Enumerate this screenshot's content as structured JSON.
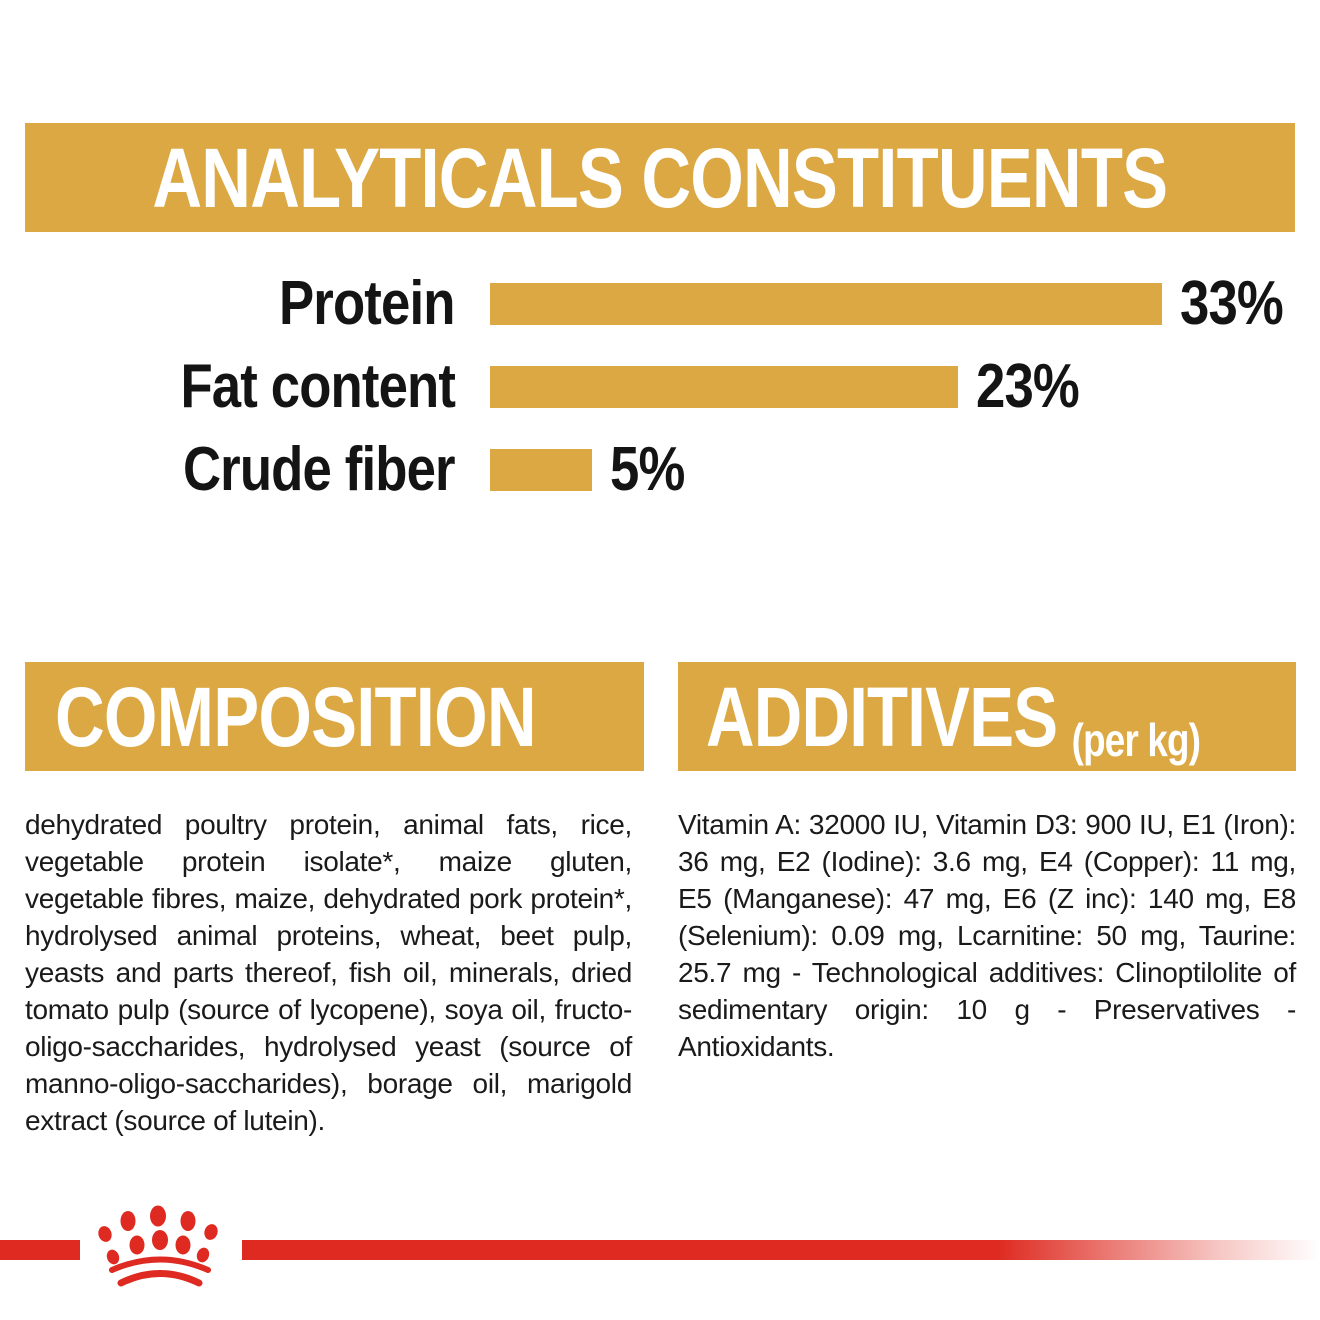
{
  "colors": {
    "gold": "#DBA843",
    "red": "#DE2A20",
    "text": "#1a1a1a",
    "heading_text": "#ffffff"
  },
  "analyticals": {
    "title": "ANALYTICALS CONSTITUENTS"
  },
  "chart_data": {
    "type": "bar",
    "orientation": "horizontal",
    "categories": [
      "Protein",
      "Fat content",
      "Crude fiber"
    ],
    "values": [
      33,
      23,
      5
    ],
    "value_labels": [
      "33%",
      "23%",
      "5%"
    ],
    "xlim": [
      0,
      33
    ],
    "bar_color": "#DBA843",
    "grid": "off",
    "legend": "none",
    "title": "ANALYTICALS CONSTITUENTS"
  },
  "composition": {
    "title": "COMPOSITION",
    "body": "dehydrated poultry protein, animal fats, rice, vegetable protein isolate*, maize gluten, vegetable fibres, maize, dehydrated pork protein*, hydrolysed animal proteins, wheat, beet pulp, yeasts and parts thereof, fish oil, minerals, dried tomato pulp (source of lycopene), soya oil, fructo-oligo-saccharides, hydrolysed yeast (source of manno-oligo-saccharides), borage oil, marigold extract (source of lutein)."
  },
  "additives": {
    "title": "ADDITIVES",
    "title_suffix": "(per kg)",
    "body": "Vitamin A: 32000 IU, Vitamin D3: 900 IU, E1 (Iron): 36 mg, E2 (Iodine): 3.6 mg, E4 (Copper): 11 mg, E5 (Manganese): 47 mg, E6 (Z inc): 140 mg, E8 (Selenium): 0.09 mg, Lcarnitine: 50 mg, Taurine: 25.7 mg - Technological additives: Clinoptilolite of sedimentary origin: 10 g - Preservatives - Antioxidants."
  },
  "footer": {
    "logo": "royal-canin-crown-icon"
  }
}
